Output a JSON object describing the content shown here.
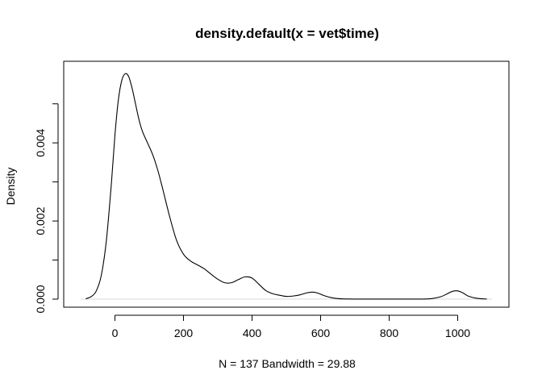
{
  "chart_data": {
    "type": "line",
    "title": "density.default(x = vet$time)",
    "xlabel": "N = 137   Bandwidth = 29.88",
    "ylabel": "Density",
    "xlim": [
      -100,
      1100
    ],
    "ylim": [
      0,
      0.0058
    ],
    "x_ticks": [
      0,
      200,
      400,
      600,
      800,
      1000
    ],
    "x_tick_labels": [
      "0",
      "200",
      "400",
      "600",
      "800",
      "1000"
    ],
    "y_ticks": [
      0,
      0.001,
      0.002,
      0.003,
      0.004,
      0.005
    ],
    "y_tick_labels": [
      "0.000",
      "",
      "0.002",
      "",
      "0.004",
      ""
    ],
    "grid": false,
    "series": [
      {
        "color": "#000000",
        "x": [
          -85,
          -70,
          -55,
          -40,
          -25,
          -10,
          0,
          10,
          20,
          30,
          40,
          50,
          60,
          70,
          80,
          95,
          110,
          125,
          140,
          160,
          180,
          200,
          220,
          240,
          260,
          280,
          300,
          320,
          340,
          360,
          380,
          400,
          420,
          440,
          460,
          480,
          500,
          520,
          540,
          560,
          575,
          590,
          610,
          630,
          650,
          680,
          720,
          800,
          880,
          920,
          950,
          970,
          985,
          1000,
          1015,
          1030,
          1050,
          1070,
          1085
        ],
        "y": [
          1e-05,
          6e-05,
          0.0002,
          0.0006,
          0.0015,
          0.003,
          0.0042,
          0.0051,
          0.0056,
          0.00577,
          0.0057,
          0.0054,
          0.005,
          0.0046,
          0.0043,
          0.004,
          0.0037,
          0.0033,
          0.0028,
          0.0021,
          0.0015,
          0.00115,
          0.00098,
          0.00088,
          0.00078,
          0.00064,
          0.00051,
          0.00042,
          0.00042,
          0.0005,
          0.00057,
          0.00054,
          0.00038,
          0.00022,
          0.00014,
          0.0001,
          7e-05,
          8e-05,
          0.00011,
          0.00016,
          0.00018,
          0.00016,
          9e-05,
          4e-05,
          1.5e-05,
          3e-06,
          1e-06,
          1e-06,
          1e-06,
          1e-05,
          6e-05,
          0.00014,
          0.0002,
          0.00021,
          0.00016,
          8e-05,
          3e-05,
          8e-06,
          2e-06
        ]
      }
    ]
  }
}
